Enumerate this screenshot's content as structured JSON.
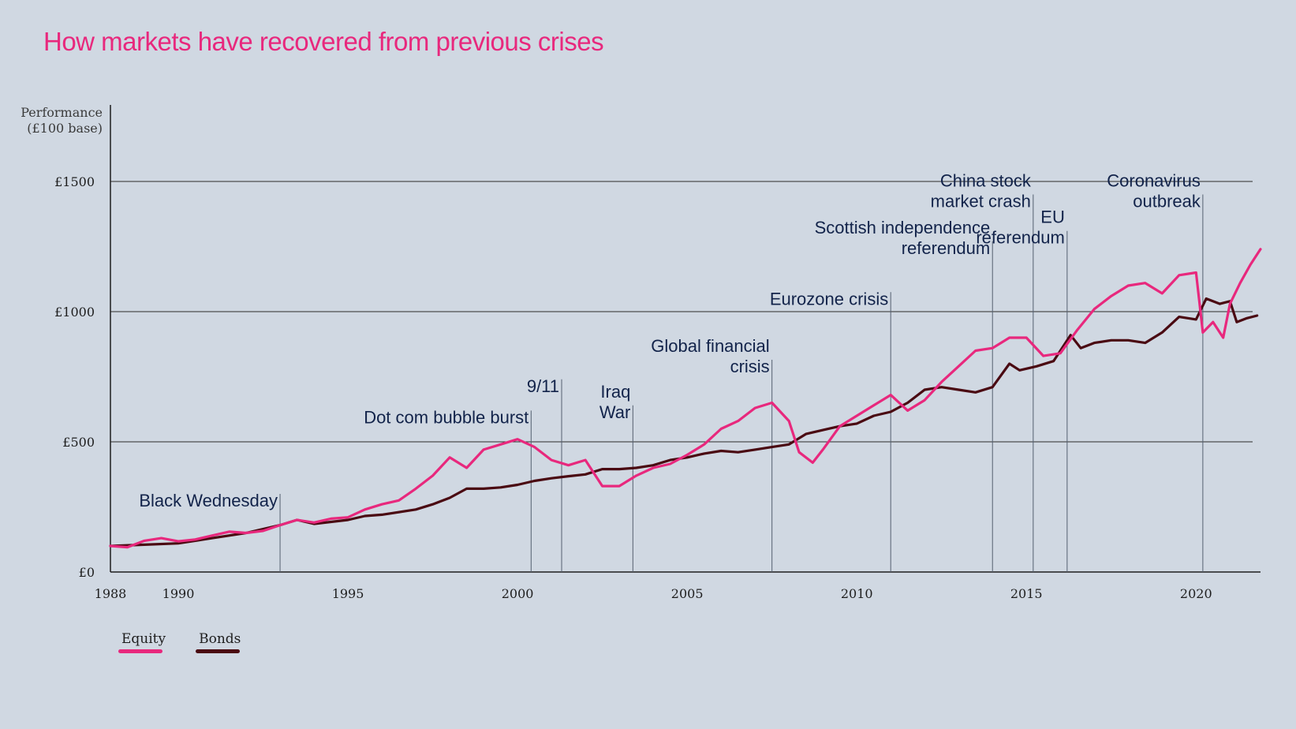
{
  "title": "How markets have recovered from previous crises",
  "colors": {
    "equity": "#e8287d",
    "bonds": "#4a0a12",
    "grid": "#2b2b2b",
    "annotation_line": "#556070",
    "annotation_text": "#12234a"
  },
  "chart_data": {
    "type": "line",
    "title": "How markets have recovered from previous crises",
    "ylabel": "Performance (£100 base)",
    "ylabel_lines": [
      "Performance",
      "(£100 base)"
    ],
    "xlabel": "",
    "x_ticks": [
      "1988",
      "1990",
      "1995",
      "2000",
      "2005",
      "2010",
      "2015",
      "2020"
    ],
    "xlim": [
      1988,
      2021.9
    ],
    "y_ticks": [
      {
        "value": 0,
        "label": "£0"
      },
      {
        "value": 500,
        "label": "£500"
      },
      {
        "value": 1000,
        "label": "£1000"
      },
      {
        "value": 1500,
        "label": "£1500"
      }
    ],
    "ylim": [
      0,
      1500
    ],
    "grid": "horizontal",
    "legend_position": "bottom-left",
    "series": [
      {
        "name": "Equity",
        "color": "#e8287d",
        "points": [
          [
            1988,
            100
          ],
          [
            1988.5,
            95
          ],
          [
            1989,
            120
          ],
          [
            1989.5,
            130
          ],
          [
            1990,
            118
          ],
          [
            1990.5,
            125
          ],
          [
            1991,
            140
          ],
          [
            1991.5,
            155
          ],
          [
            1992,
            150
          ],
          [
            1992.5,
            158
          ],
          [
            1993,
            180
          ],
          [
            1993.5,
            200
          ],
          [
            1994,
            190
          ],
          [
            1994.5,
            205
          ],
          [
            1995,
            210
          ],
          [
            1995.5,
            240
          ],
          [
            1996,
            260
          ],
          [
            1996.5,
            275
          ],
          [
            1997,
            320
          ],
          [
            1997.5,
            370
          ],
          [
            1998,
            440
          ],
          [
            1998.5,
            400
          ],
          [
            1999,
            470
          ],
          [
            1999.5,
            490
          ],
          [
            2000,
            510
          ],
          [
            2000.5,
            480
          ],
          [
            2001,
            430
          ],
          [
            2001.5,
            410
          ],
          [
            2002,
            430
          ],
          [
            2002.5,
            330
          ],
          [
            2003,
            330
          ],
          [
            2003.5,
            370
          ],
          [
            2004,
            400
          ],
          [
            2004.5,
            415
          ],
          [
            2005,
            450
          ],
          [
            2005.5,
            490
          ],
          [
            2006,
            550
          ],
          [
            2006.5,
            580
          ],
          [
            2007,
            630
          ],
          [
            2007.5,
            650
          ],
          [
            2008,
            580
          ],
          [
            2008.3,
            460
          ],
          [
            2008.7,
            420
          ],
          [
            2009,
            470
          ],
          [
            2009.5,
            560
          ],
          [
            2010,
            600
          ],
          [
            2010.5,
            640
          ],
          [
            2011,
            680
          ],
          [
            2011.5,
            620
          ],
          [
            2012,
            660
          ],
          [
            2012.5,
            730
          ],
          [
            2013,
            790
          ],
          [
            2013.5,
            850
          ],
          [
            2014,
            860
          ],
          [
            2014.5,
            900
          ],
          [
            2015,
            900
          ],
          [
            2015.5,
            830
          ],
          [
            2016,
            840
          ],
          [
            2016.5,
            930
          ],
          [
            2017,
            1010
          ],
          [
            2017.5,
            1060
          ],
          [
            2018,
            1100
          ],
          [
            2018.5,
            1110
          ],
          [
            2019,
            1070
          ],
          [
            2019.5,
            1140
          ],
          [
            2020,
            1150
          ],
          [
            2020.2,
            920
          ],
          [
            2020.5,
            960
          ],
          [
            2020.8,
            900
          ],
          [
            2021,
            1030
          ],
          [
            2021.3,
            1110
          ],
          [
            2021.6,
            1180
          ],
          [
            2021.9,
            1240
          ]
        ]
      },
      {
        "name": "Bonds",
        "color": "#4a0a12",
        "points": [
          [
            1988,
            100
          ],
          [
            1989,
            105
          ],
          [
            1990,
            110
          ],
          [
            1990.5,
            120
          ],
          [
            1991,
            130
          ],
          [
            1992,
            150
          ],
          [
            1993,
            180
          ],
          [
            1993.5,
            200
          ],
          [
            1994,
            185
          ],
          [
            1995,
            200
          ],
          [
            1995.5,
            215
          ],
          [
            1996,
            220
          ],
          [
            1997,
            240
          ],
          [
            1997.5,
            260
          ],
          [
            1998,
            285
          ],
          [
            1998.5,
            320
          ],
          [
            1999,
            320
          ],
          [
            1999.5,
            325
          ],
          [
            2000,
            335
          ],
          [
            2000.5,
            350
          ],
          [
            2001,
            360
          ],
          [
            2001.5,
            368
          ],
          [
            2002,
            375
          ],
          [
            2002.5,
            395
          ],
          [
            2003,
            395
          ],
          [
            2003.5,
            400
          ],
          [
            2004,
            410
          ],
          [
            2004.5,
            430
          ],
          [
            2005,
            440
          ],
          [
            2005.5,
            455
          ],
          [
            2006,
            465
          ],
          [
            2006.5,
            460
          ],
          [
            2007,
            470
          ],
          [
            2007.5,
            480
          ],
          [
            2008,
            490
          ],
          [
            2008.5,
            530
          ],
          [
            2009,
            545
          ],
          [
            2009.5,
            560
          ],
          [
            2010,
            570
          ],
          [
            2010.5,
            600
          ],
          [
            2011,
            615
          ],
          [
            2011.5,
            650
          ],
          [
            2012,
            700
          ],
          [
            2012.5,
            710
          ],
          [
            2013,
            700
          ],
          [
            2013.5,
            690
          ],
          [
            2014,
            710
          ],
          [
            2014.5,
            800
          ],
          [
            2014.8,
            775
          ],
          [
            2015.3,
            790
          ],
          [
            2015.8,
            810
          ],
          [
            2016.3,
            910
          ],
          [
            2016.6,
            860
          ],
          [
            2017,
            880
          ],
          [
            2017.5,
            890
          ],
          [
            2018,
            890
          ],
          [
            2018.5,
            880
          ],
          [
            2019,
            920
          ],
          [
            2019.5,
            980
          ],
          [
            2020,
            970
          ],
          [
            2020.3,
            1050
          ],
          [
            2020.7,
            1030
          ],
          [
            2021,
            1040
          ],
          [
            2021.2,
            960
          ],
          [
            2021.5,
            975
          ],
          [
            2021.8,
            985
          ]
        ]
      }
    ],
    "annotations": [
      {
        "x": 1993,
        "lines": [
          "Black Wednesday"
        ],
        "level": 300
      },
      {
        "x": 2000.4,
        "lines": [
          "Dot com bubble burst"
        ],
        "level": 620
      },
      {
        "x": 2001.3,
        "lines": [
          "9/11"
        ],
        "level": 740
      },
      {
        "x": 2003.4,
        "lines": [
          "Iraq",
          "War"
        ],
        "level": 640
      },
      {
        "x": 2007.5,
        "lines": [
          "Global financial",
          "crisis"
        ],
        "level": 815
      },
      {
        "x": 2011,
        "lines": [
          "Eurozone crisis"
        ],
        "level": 1075
      },
      {
        "x": 2014,
        "lines": [
          "Scottish independence",
          "referendum"
        ],
        "level": 1270
      },
      {
        "x": 2015.2,
        "lines": [
          "China stock",
          "market crash"
        ],
        "level": 1450
      },
      {
        "x": 2016.2,
        "lines": [
          "EU",
          "referendum"
        ],
        "level": 1310
      },
      {
        "x": 2020.2,
        "lines": [
          "Coronavirus",
          "outbreak"
        ],
        "level": 1450
      }
    ]
  },
  "legend": [
    {
      "label": "Equity",
      "color": "#e8287d"
    },
    {
      "label": "Bonds",
      "color": "#4a0a12"
    }
  ]
}
